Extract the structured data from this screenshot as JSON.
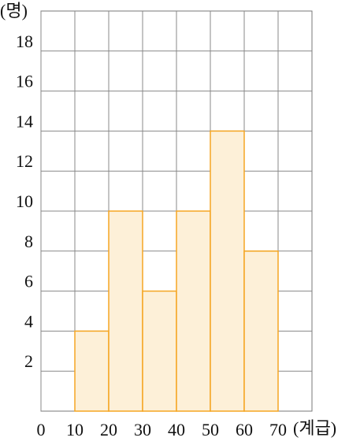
{
  "chart_data": {
    "type": "histogram",
    "y_label": "(명)",
    "x_label": "(계급)",
    "bins": [
      10,
      20,
      30,
      40,
      50,
      60,
      70
    ],
    "values": [
      4,
      10,
      6,
      10,
      14,
      8
    ],
    "color": "#fdf0d8",
    "edge_color": "#f5a623",
    "xlim": [
      0,
      80
    ],
    "xticks": [
      0,
      10,
      20,
      30,
      40,
      50,
      60,
      70
    ],
    "ylim": [
      0,
      20
    ],
    "yticks": [
      2,
      4,
      6,
      8,
      10,
      12,
      14,
      16,
      18
    ],
    "grid": true
  }
}
